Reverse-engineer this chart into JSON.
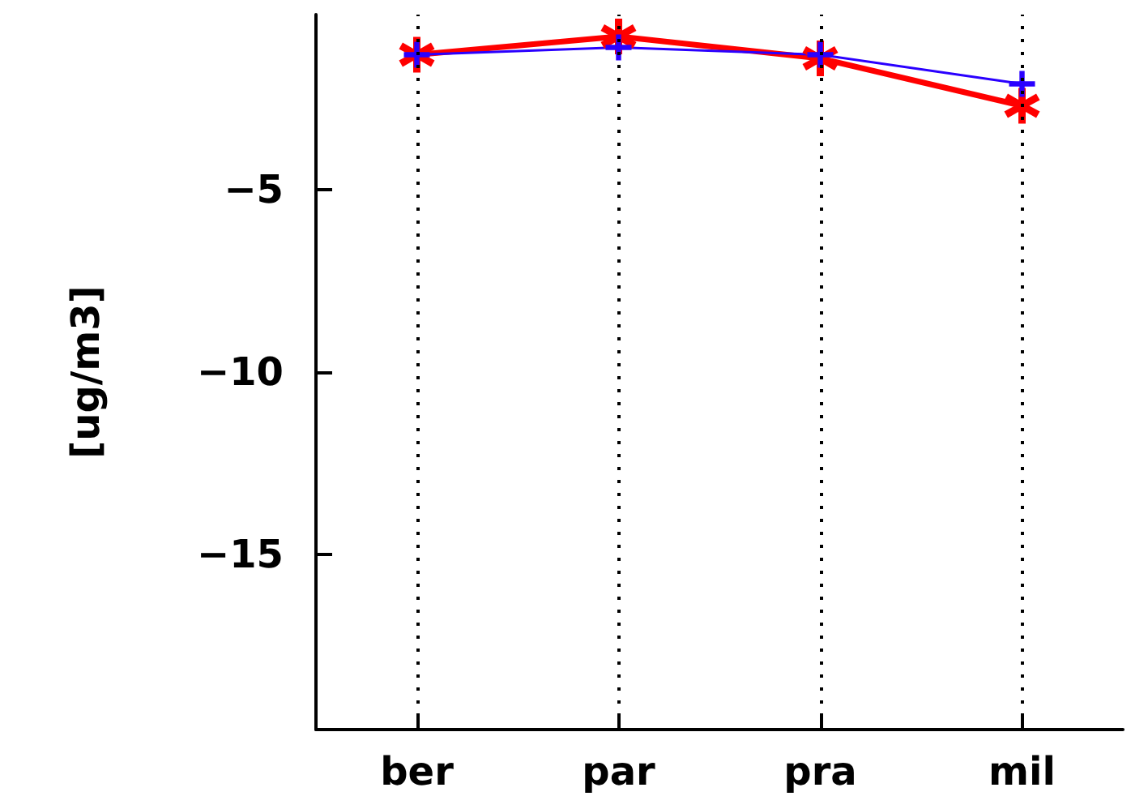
{
  "chart_data": {
    "type": "line",
    "ylabel": "[ug/m3]",
    "categories": [
      "ber",
      "par",
      "pra",
      "mil"
    ],
    "series": [
      {
        "color": "#ff0000",
        "marker": "star",
        "values": [
          -1.3,
          -0.8,
          -1.4,
          -2.7
        ]
      },
      {
        "color": "#2a00ff",
        "marker": "cross",
        "values": [
          -1.3,
          -1.1,
          -1.3,
          -2.1
        ]
      }
    ],
    "ylim": [
      -19.8,
      -0.2
    ],
    "yticks": [
      -5,
      -10,
      -15
    ],
    "grid": "x",
    "line_style": "solid"
  }
}
